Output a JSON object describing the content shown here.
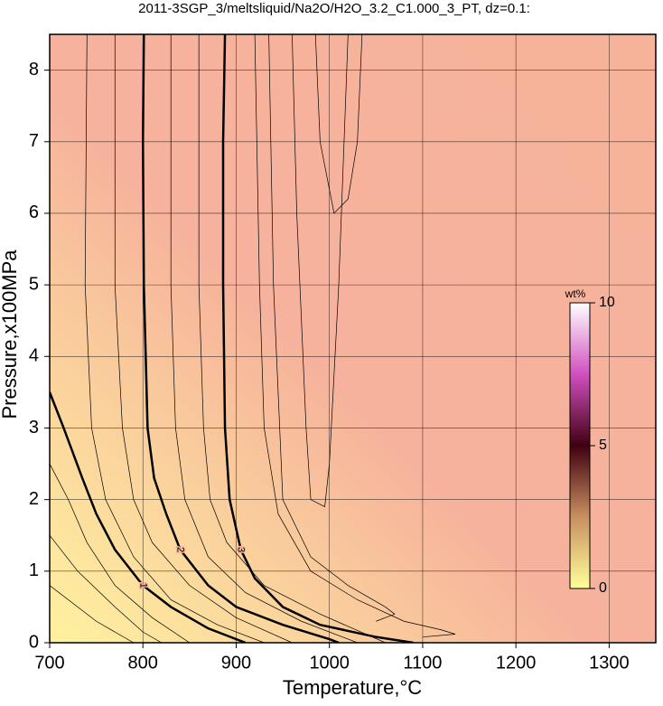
{
  "chart_data": {
    "type": "contour",
    "title": "2011-3SGP_3/meltsliquid/Na2O/H2O_3.2_C1.000_3_PT, dz=0.1:",
    "x_label": "Temperature,°C",
    "y_label": "Pressure,x100MPa",
    "xlim": [
      700,
      1350
    ],
    "xticks": [
      700,
      800,
      900,
      1000,
      1100,
      1200,
      1300
    ],
    "ylim": [
      0,
      8.5
    ],
    "yticks": [
      0,
      1,
      2,
      3,
      4,
      5,
      6,
      7,
      8
    ],
    "grid": true,
    "color": "#000000",
    "series": [
      {
        "level": 1,
        "width": 2.5,
        "x": [
          700,
          715,
          735,
          750,
          770,
          800,
          830,
          870,
          900,
          910
        ],
        "y": [
          3.5,
          3,
          2.3,
          1.8,
          1.3,
          0.8,
          0.5,
          0.2,
          0.05,
          0
        ]
      },
      {
        "level": 2,
        "width": 2.5,
        "x": [
          801,
          800,
          801,
          805,
          812,
          825,
          840,
          870,
          900,
          950,
          1000,
          1010
        ],
        "y": [
          8.5,
          7,
          5,
          3,
          2.3,
          1.8,
          1.3,
          0.8,
          0.5,
          0.25,
          0.05,
          0
        ]
      },
      {
        "level": 3,
        "width": 2.5,
        "x": [
          888,
          886,
          886,
          888,
          893,
          905,
          920,
          950,
          990,
          1050,
          1090
        ],
        "y": [
          8.5,
          7,
          5,
          3,
          2,
          1.3,
          0.9,
          0.5,
          0.25,
          0.08,
          0
        ]
      },
      {
        "width": 0.7,
        "x": [
          700,
          720,
          740,
          770,
          810,
          850
        ],
        "y": [
          2.5,
          2,
          1.4,
          0.8,
          0.35,
          0
        ]
      },
      {
        "width": 0.7,
        "x": [
          700,
          730,
          770,
          800,
          820
        ],
        "y": [
          1.5,
          1,
          0.5,
          0.15,
          0
        ]
      },
      {
        "width": 0.7,
        "x": [
          700,
          750,
          790
        ],
        "y": [
          0.8,
          0.3,
          0
        ]
      },
      {
        "width": 0.7,
        "x": [
          740,
          738,
          745,
          760,
          790,
          830,
          880,
          930
        ],
        "y": [
          8.5,
          5,
          3,
          2,
          1.2,
          0.6,
          0.25,
          0
        ]
      },
      {
        "width": 0.7,
        "x": [
          770,
          770,
          778,
          790,
          810,
          850,
          900,
          960
        ],
        "y": [
          8.5,
          5,
          3,
          2,
          1.4,
          0.8,
          0.35,
          0
        ]
      },
      {
        "width": 0.7,
        "x": [
          830,
          830,
          835,
          845,
          870,
          910,
          970,
          1030
        ],
        "y": [
          8.5,
          5,
          3,
          2,
          1.2,
          0.7,
          0.3,
          0
        ]
      },
      {
        "width": 0.7,
        "x": [
          860,
          860,
          865,
          872,
          890,
          930,
          990,
          1060
        ],
        "y": [
          8.5,
          5,
          3,
          2,
          1.4,
          0.8,
          0.4,
          0
        ]
      },
      {
        "width": 0.7,
        "x": [
          920,
          925,
          930,
          945,
          980,
          1030,
          1080,
          1120,
          1135,
          1100
        ],
        "y": [
          8.5,
          5,
          3,
          1.8,
          1,
          0.6,
          0.3,
          0.18,
          0.12,
          0.08
        ]
      },
      {
        "width": 0.7,
        "x": [
          935,
          940,
          950,
          980,
          1020,
          1060,
          1070,
          1050
        ],
        "y": [
          8.5,
          5,
          2,
          1.2,
          0.8,
          0.5,
          0.4,
          0.3
        ]
      },
      {
        "width": 0.7,
        "x": [
          960,
          965,
          975,
          980,
          995,
          1000,
          1010,
          1020
        ],
        "y": [
          8.5,
          6,
          3,
          2,
          1.9,
          2.5,
          5,
          8.5
        ]
      },
      {
        "width": 0.7,
        "x": [
          985,
          990,
          1005,
          1020,
          1030,
          1035
        ],
        "y": [
          8.5,
          7,
          6,
          6.2,
          7,
          8.5
        ]
      }
    ],
    "colorbar": {
      "title": "wt%",
      "lim": [
        0,
        10
      ],
      "ticks": [
        0,
        5,
        10
      ],
      "colors": [
        "#ffff99",
        "#c89060",
        "#400010",
        "#d050c0",
        "#ffffff"
      ]
    }
  }
}
